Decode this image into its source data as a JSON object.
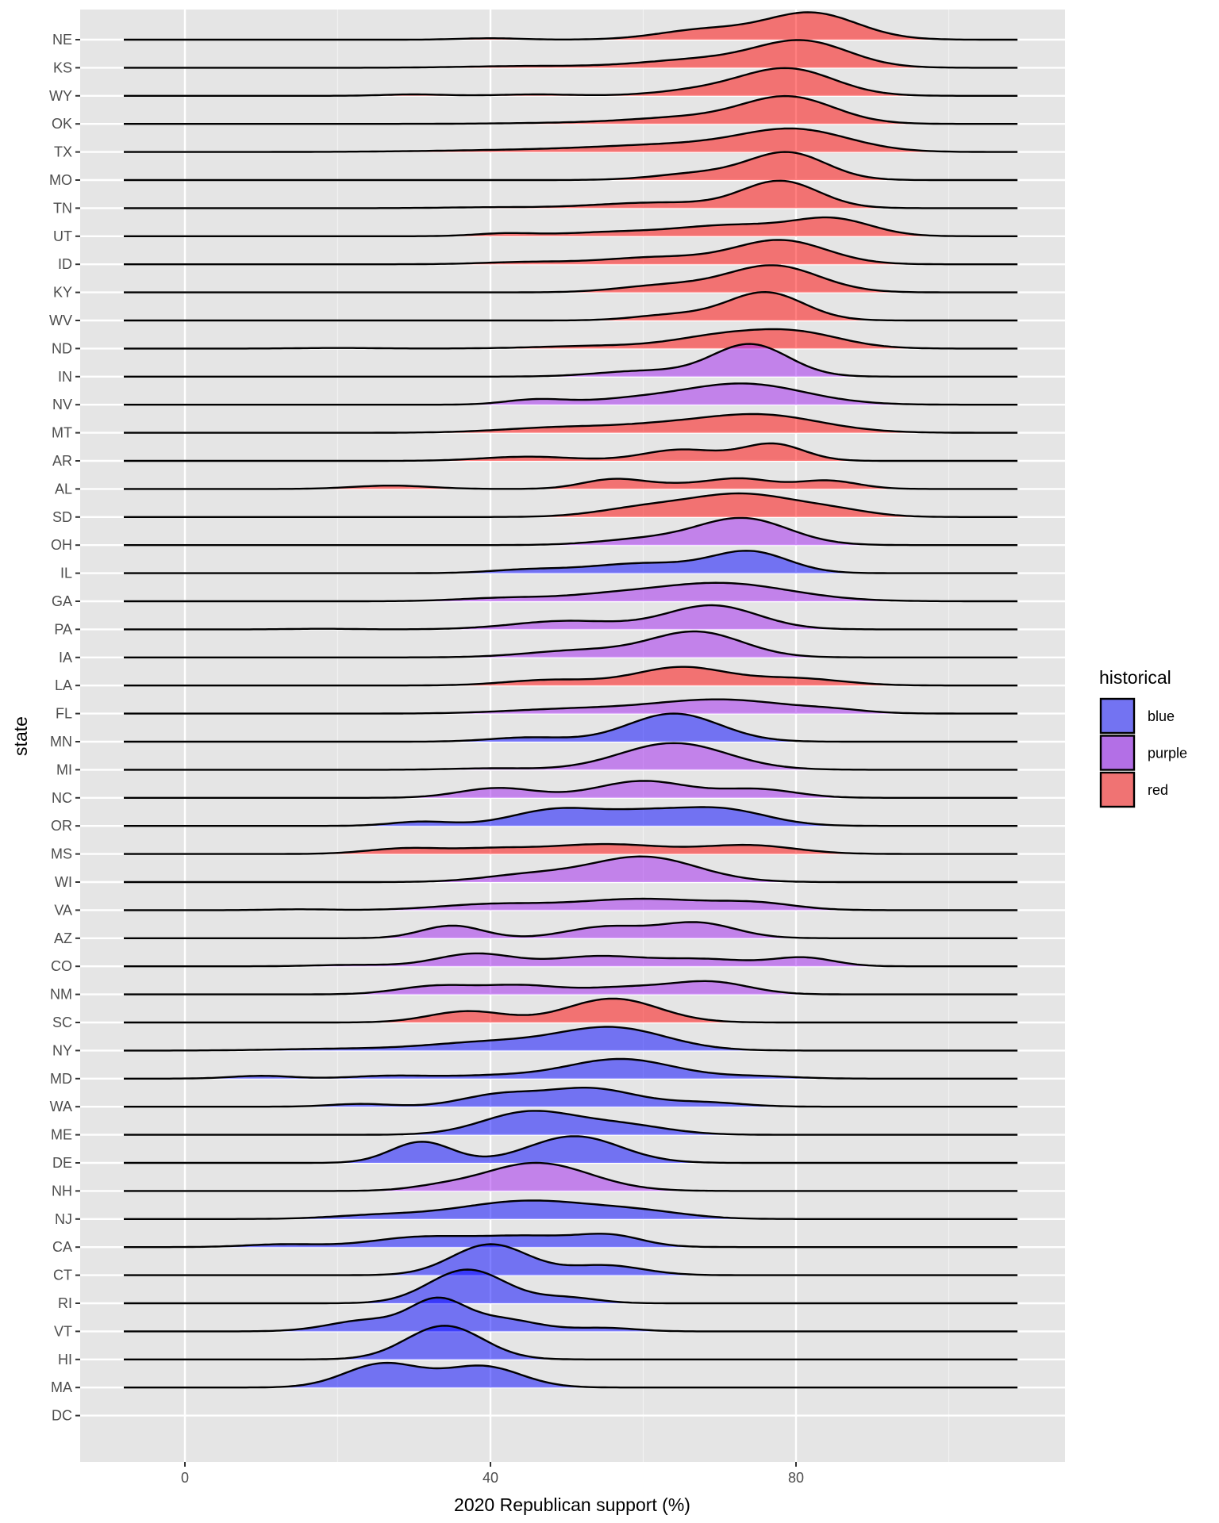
{
  "chart_data": {
    "type": "ridgeline",
    "xlabel": "2020 Republican support (%)",
    "ylabel": "state",
    "xlim": [
      -13.7,
      115.2
    ],
    "x_ticks": [
      0,
      40,
      80
    ],
    "x_tick_labels": [
      "0",
      "40",
      "80"
    ],
    "grid": true,
    "legend": {
      "title": "historical",
      "placement": "right",
      "entries": [
        {
          "label": "blue",
          "color": "#7373F2"
        },
        {
          "label": "purple",
          "color": "#B36FE6"
        },
        {
          "label": "red",
          "color": "#F07373"
        }
      ]
    },
    "fill_colors": {
      "blue": "rgba(0,0,255,0.5)",
      "purple": "rgba(160,32,240,0.5)",
      "red": "rgba(255,0,0,0.5)"
    },
    "density_range": [
      -8,
      109
    ],
    "note_components": "each state's density approximated as gaussian mixture [mean, sd, relative height]",
    "states": [
      {
        "state": "NE",
        "group": "red",
        "components": [
          [
            82,
            6,
            0.95
          ],
          [
            68,
            6,
            0.35
          ],
          [
            40,
            4,
            0.05
          ]
        ]
      },
      {
        "state": "KS",
        "group": "red",
        "components": [
          [
            81,
            6,
            0.9
          ],
          [
            68,
            8,
            0.3
          ],
          [
            45,
            8,
            0.06
          ]
        ]
      },
      {
        "state": "WY",
        "group": "red",
        "components": [
          [
            79,
            6,
            0.95
          ],
          [
            68,
            6,
            0.2
          ],
          [
            30,
            4,
            0.05
          ],
          [
            46,
            5,
            0.05
          ]
        ]
      },
      {
        "state": "OK",
        "group": "red",
        "components": [
          [
            79,
            6,
            0.95
          ],
          [
            66,
            7,
            0.2
          ],
          [
            55,
            10,
            0.05
          ]
        ]
      },
      {
        "state": "TX",
        "group": "red",
        "components": [
          [
            80,
            7,
            0.75
          ],
          [
            65,
            10,
            0.25
          ],
          [
            45,
            12,
            0.07
          ]
        ]
      },
      {
        "state": "MO",
        "group": "red",
        "components": [
          [
            79,
            5,
            0.95
          ],
          [
            68,
            6,
            0.25
          ]
        ]
      },
      {
        "state": "TN",
        "group": "red",
        "components": [
          [
            78,
            5,
            0.95
          ],
          [
            62,
            8,
            0.2
          ],
          [
            40,
            6,
            0.03
          ]
        ]
      },
      {
        "state": "UT",
        "group": "red",
        "components": [
          [
            85,
            5,
            0.55
          ],
          [
            72,
            8,
            0.4
          ],
          [
            42,
            4,
            0.1
          ],
          [
            55,
            6,
            0.12
          ]
        ]
      },
      {
        "state": "ID",
        "group": "red",
        "components": [
          [
            78,
            6,
            0.85
          ],
          [
            62,
            7,
            0.25
          ],
          [
            45,
            6,
            0.08
          ]
        ]
      },
      {
        "state": "KY",
        "group": "red",
        "components": [
          [
            77,
            6,
            0.95
          ],
          [
            63,
            6,
            0.25
          ]
        ]
      },
      {
        "state": "WV",
        "group": "red",
        "components": [
          [
            76,
            5,
            1.0
          ],
          [
            64,
            5,
            0.2
          ]
        ]
      },
      {
        "state": "ND",
        "group": "red",
        "components": [
          [
            80,
            6,
            0.55
          ],
          [
            70,
            6,
            0.4
          ],
          [
            55,
            8,
            0.1
          ],
          [
            20,
            5,
            0.02
          ]
        ]
      },
      {
        "state": "IN",
        "group": "purple",
        "components": [
          [
            74,
            5,
            1.15
          ],
          [
            60,
            6,
            0.2
          ]
        ]
      },
      {
        "state": "NV",
        "group": "purple",
        "components": [
          [
            73,
            8,
            0.75
          ],
          [
            46,
            4,
            0.18
          ],
          [
            58,
            6,
            0.15
          ]
        ]
      },
      {
        "state": "MT",
        "group": "red",
        "components": [
          [
            75,
            8,
            0.65
          ],
          [
            50,
            8,
            0.2
          ],
          [
            62,
            6,
            0.15
          ]
        ]
      },
      {
        "state": "AR",
        "group": "red",
        "components": [
          [
            77,
            4,
            0.6
          ],
          [
            65,
            5,
            0.4
          ],
          [
            45,
            6,
            0.15
          ]
        ]
      },
      {
        "state": "AL",
        "group": "red",
        "components": [
          [
            27,
            5,
            0.12
          ],
          [
            56,
            4,
            0.33
          ],
          [
            73,
            4,
            0.33
          ],
          [
            84,
            4,
            0.3
          ],
          [
            65,
            5,
            0.15
          ]
        ]
      },
      {
        "state": "SD",
        "group": "red",
        "components": [
          [
            73,
            7,
            0.8
          ],
          [
            60,
            6,
            0.3
          ],
          [
            85,
            5,
            0.2
          ]
        ]
      },
      {
        "state": "OH",
        "group": "purple",
        "components": [
          [
            73,
            6,
            0.95
          ],
          [
            60,
            6,
            0.2
          ]
        ]
      },
      {
        "state": "IL",
        "group": "blue",
        "components": [
          [
            74,
            5,
            0.75
          ],
          [
            60,
            7,
            0.35
          ],
          [
            45,
            5,
            0.12
          ]
        ]
      },
      {
        "state": "GA",
        "group": "purple",
        "components": [
          [
            70,
            9,
            0.65
          ],
          [
            42,
            6,
            0.12
          ],
          [
            55,
            6,
            0.15
          ]
        ]
      },
      {
        "state": "PA",
        "group": "purple",
        "components": [
          [
            69,
            6,
            0.85
          ],
          [
            50,
            7,
            0.3
          ],
          [
            18,
            4,
            0.02
          ]
        ]
      },
      {
        "state": "IA",
        "group": "purple",
        "components": [
          [
            67,
            6,
            0.9
          ],
          [
            52,
            7,
            0.25
          ]
        ]
      },
      {
        "state": "LA",
        "group": "red",
        "components": [
          [
            65,
            6,
            0.65
          ],
          [
            48,
            6,
            0.2
          ],
          [
            80,
            6,
            0.25
          ]
        ]
      },
      {
        "state": "FL",
        "group": "purple",
        "components": [
          [
            70,
            9,
            0.5
          ],
          [
            50,
            8,
            0.15
          ],
          [
            85,
            4,
            0.08
          ]
        ]
      },
      {
        "state": "MN",
        "group": "blue",
        "components": [
          [
            64,
            6,
            1.0
          ],
          [
            45,
            5,
            0.15
          ]
        ]
      },
      {
        "state": "MI",
        "group": "purple",
        "components": [
          [
            64,
            7,
            0.95
          ],
          [
            40,
            5,
            0.05
          ]
        ]
      },
      {
        "state": "NC",
        "group": "purple",
        "components": [
          [
            60,
            6,
            0.6
          ],
          [
            41,
            5,
            0.35
          ],
          [
            75,
            5,
            0.3
          ]
        ]
      },
      {
        "state": "OR",
        "group": "blue",
        "components": [
          [
            49,
            6,
            0.6
          ],
          [
            70,
            6,
            0.6
          ],
          [
            31,
            4,
            0.15
          ],
          [
            60,
            5,
            0.35
          ]
        ]
      },
      {
        "state": "MS",
        "group": "red",
        "components": [
          [
            29,
            5,
            0.2
          ],
          [
            55,
            8,
            0.35
          ],
          [
            74,
            6,
            0.3
          ],
          [
            40,
            5,
            0.15
          ]
        ]
      },
      {
        "state": "WI",
        "group": "purple",
        "components": [
          [
            60,
            7,
            0.9
          ],
          [
            45,
            6,
            0.25
          ]
        ]
      },
      {
        "state": "VA",
        "group": "purple",
        "components": [
          [
            60,
            9,
            0.4
          ],
          [
            40,
            7,
            0.2
          ],
          [
            75,
            5,
            0.2
          ],
          [
            15,
            4,
            0.03
          ]
        ]
      },
      {
        "state": "AZ",
        "group": "purple",
        "components": [
          [
            35,
            4,
            0.45
          ],
          [
            55,
            5,
            0.4
          ],
          [
            67,
            5,
            0.55
          ]
        ]
      },
      {
        "state": "CO",
        "group": "purple",
        "components": [
          [
            38,
            5,
            0.45
          ],
          [
            54,
            6,
            0.35
          ],
          [
            68,
            6,
            0.25
          ],
          [
            81,
            4,
            0.3
          ],
          [
            22,
            5,
            0.05
          ]
        ]
      },
      {
        "state": "NM",
        "group": "purple",
        "components": [
          [
            33,
            5,
            0.3
          ],
          [
            44,
            5,
            0.3
          ],
          [
            58,
            6,
            0.25
          ],
          [
            69,
            5,
            0.42
          ]
        ]
      },
      {
        "state": "SC",
        "group": "red",
        "components": [
          [
            37,
            5,
            0.4
          ],
          [
            56,
            6,
            0.85
          ]
        ]
      },
      {
        "state": "NY",
        "group": "blue",
        "components": [
          [
            56,
            7,
            0.8
          ],
          [
            40,
            8,
            0.3
          ],
          [
            20,
            8,
            0.06
          ]
        ]
      },
      {
        "state": "MD",
        "group": "blue",
        "components": [
          [
            57,
            7,
            0.7
          ],
          [
            40,
            6,
            0.1
          ],
          [
            27,
            5,
            0.1
          ],
          [
            10,
            4,
            0.1
          ],
          [
            75,
            5,
            0.08
          ]
        ]
      },
      {
        "state": "WA",
        "group": "blue",
        "components": [
          [
            53,
            6,
            0.65
          ],
          [
            41,
            5,
            0.4
          ],
          [
            23,
            4,
            0.1
          ],
          [
            68,
            5,
            0.15
          ]
        ]
      },
      {
        "state": "ME",
        "group": "blue",
        "components": [
          [
            45,
            6,
            0.8
          ],
          [
            57,
            6,
            0.35
          ]
        ]
      },
      {
        "state": "DE",
        "group": "blue",
        "components": [
          [
            31,
            4,
            0.75
          ],
          [
            51,
            6,
            0.95
          ]
        ]
      },
      {
        "state": "NH",
        "group": "purple",
        "components": [
          [
            46,
            7,
            1.0
          ],
          [
            33,
            4,
            0.1
          ]
        ]
      },
      {
        "state": "NJ",
        "group": "blue",
        "components": [
          [
            45,
            9,
            0.65
          ],
          [
            25,
            6,
            0.12
          ],
          [
            60,
            6,
            0.2
          ]
        ]
      },
      {
        "state": "CA",
        "group": "blue",
        "components": [
          [
            30,
            6,
            0.3
          ],
          [
            45,
            8,
            0.4
          ],
          [
            56,
            4,
            0.3
          ],
          [
            13,
            5,
            0.1
          ]
        ]
      },
      {
        "state": "CT",
        "group": "blue",
        "components": [
          [
            40,
            5,
            1.1
          ],
          [
            55,
            5,
            0.35
          ]
        ]
      },
      {
        "state": "RI",
        "group": "blue",
        "components": [
          [
            37,
            5,
            1.2
          ],
          [
            50,
            4,
            0.2
          ]
        ]
      },
      {
        "state": "VT",
        "group": "blue",
        "components": [
          [
            33,
            3.5,
            1.0
          ],
          [
            24,
            5,
            0.4
          ],
          [
            41,
            5,
            0.45
          ],
          [
            55,
            4,
            0.12
          ]
        ]
      },
      {
        "state": "HI",
        "group": "blue",
        "components": [
          [
            34,
            5,
            1.2
          ]
        ]
      },
      {
        "state": "MA",
        "group": "blue",
        "components": [
          [
            26,
            5,
            0.85
          ],
          [
            39,
            5,
            0.75
          ]
        ]
      },
      {
        "state": "DC",
        "group": "none",
        "components": []
      }
    ]
  }
}
